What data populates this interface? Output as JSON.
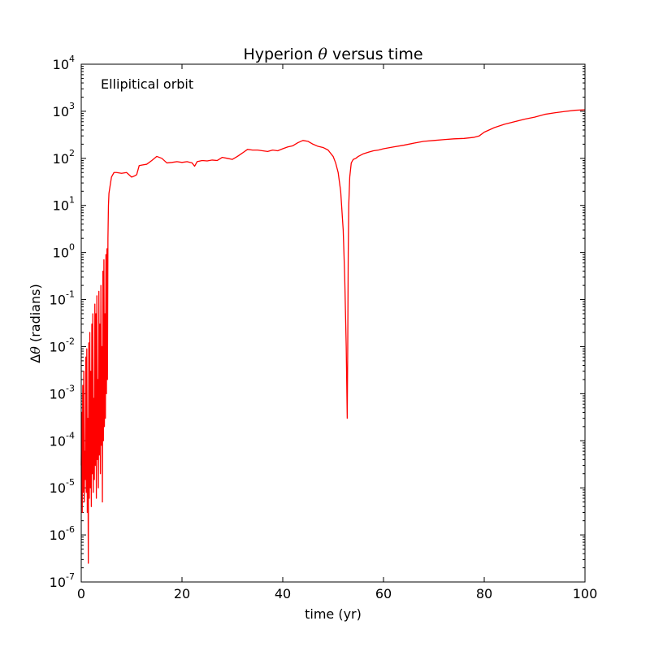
{
  "chart_data": {
    "type": "line",
    "title": "Hyperion θ versus time",
    "xlabel": "time (yr)",
    "ylabel": "Δθ (radians)",
    "annotation": "Ellipitical orbit",
    "xlim": [
      0,
      100
    ],
    "ylim_log10": [
      -7,
      4
    ],
    "yscale": "log",
    "grid": false,
    "x_ticks": [
      "0",
      "20",
      "40",
      "60",
      "80",
      "100"
    ],
    "x_tick_values": [
      0,
      20,
      40,
      60,
      80,
      100
    ],
    "y_tick_exponents": [
      "-7",
      "-6",
      "-5",
      "-4",
      "-3",
      "-2",
      "-1",
      "0",
      "1",
      "2",
      "3",
      "4"
    ],
    "y_tick_base": "10",
    "series": [
      {
        "color": "#ff0000",
        "x": [
          0.0,
          0.1,
          0.2,
          0.3,
          0.4,
          0.5,
          0.6,
          0.7,
          0.8,
          0.9,
          1.0,
          1.1,
          1.2,
          1.3,
          1.4,
          1.5,
          1.6,
          1.7,
          1.8,
          1.9,
          2.0,
          2.1,
          2.2,
          2.3,
          2.4,
          2.5,
          2.6,
          2.7,
          2.8,
          2.9,
          3.0,
          3.1,
          3.2,
          3.3,
          3.4,
          3.5,
          3.6,
          3.7,
          3.8,
          3.9,
          4.0,
          4.1,
          4.2,
          4.3,
          4.4,
          4.5,
          4.6,
          4.7,
          4.8,
          4.9,
          5.0,
          5.1,
          5.2,
          5.3,
          5.4,
          5.5,
          5.7,
          6.0,
          6.5,
          7.0,
          8.0,
          9.0,
          10.0,
          10.5,
          11.0,
          11.5,
          12.0,
          13.0,
          14.0,
          15.0,
          16.0,
          17.0,
          18.0,
          19.0,
          20.0,
          21.0,
          22.0,
          22.5,
          23.0,
          24.0,
          25.0,
          26.0,
          27.0,
          28.0,
          29.0,
          30.0,
          31.0,
          32.0,
          33.0,
          34.0,
          35.0,
          36.0,
          37.0,
          38.0,
          39.0,
          40.0,
          41.0,
          42.0,
          43.0,
          44.0,
          45.0,
          46.0,
          47.0,
          48.0,
          49.0,
          50.0,
          50.5,
          51.0,
          51.5,
          52.0,
          52.3,
          52.6,
          52.8,
          52.9,
          53.0,
          53.1,
          53.3,
          53.6,
          54.0,
          54.5,
          55.0,
          56.0,
          57.0,
          58.0,
          59.0,
          60.0,
          62.0,
          64.0,
          66.0,
          68.0,
          70.0,
          72.0,
          74.0,
          76.0,
          78.0,
          79.0,
          80.0,
          82.0,
          84.0,
          86.0,
          88.0,
          90.0,
          92.0,
          94.0,
          96.0,
          98.0,
          100.0
        ],
        "y": [
          3e-05,
          0.0004,
          3e-06,
          0.0015,
          8e-06,
          0.003,
          5e-06,
          6e-05,
          1.5e-05,
          0.006,
          8e-06,
          0.009,
          3e-06,
          0.0003,
          2.5e-07,
          0.012,
          6e-06,
          0.02,
          1e-05,
          0.003,
          4e-06,
          0.03,
          2e-05,
          0.05,
          8e-06,
          0.0008,
          1.5e-05,
          0.08,
          3e-05,
          0.05,
          6e-06,
          0.12,
          4e-05,
          0.002,
          1e-05,
          0.15,
          5e-05,
          0.03,
          2e-05,
          0.2,
          8e-05,
          0.01,
          5e-06,
          0.4,
          0.0001,
          0.7,
          0.0002,
          0.05,
          0.0003,
          0.9,
          0.001,
          1.2,
          0.002,
          2.0,
          10.0,
          18.0,
          25.0,
          40.0,
          50.0,
          50.0,
          48.0,
          50.0,
          40.0,
          42.0,
          45.0,
          70.0,
          72.0,
          75.0,
          90.0,
          110.0,
          100.0,
          80.0,
          82.0,
          85.0,
          82.0,
          85.0,
          80.0,
          68.0,
          85.0,
          90.0,
          88.0,
          92.0,
          90.0,
          105.0,
          100.0,
          95.0,
          110.0,
          130.0,
          155.0,
          150.0,
          150.0,
          145.0,
          140.0,
          150.0,
          145.0,
          160.0,
          175.0,
          185.0,
          215.0,
          240.0,
          230.0,
          200.0,
          180.0,
          170.0,
          150.0,
          110.0,
          80.0,
          50.0,
          20.0,
          3.0,
          0.3,
          0.01,
          0.0003,
          0.01,
          1.0,
          10.0,
          40.0,
          80.0,
          95.0,
          100.0,
          110.0,
          125.0,
          135.0,
          145.0,
          150.0,
          160.0,
          175.0,
          190.0,
          210.0,
          230.0,
          240.0,
          250.0,
          260.0,
          265.0,
          280.0,
          300.0,
          360.0,
          450.0,
          530.0,
          600.0,
          680.0,
          750.0,
          860.0,
          930.0,
          990.0,
          1050.0,
          1080.0
        ]
      }
    ]
  }
}
